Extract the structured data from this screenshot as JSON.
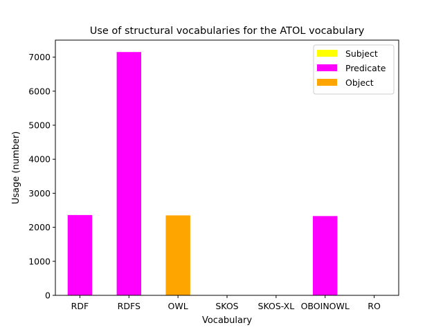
{
  "chart_data": {
    "type": "bar",
    "title": "Use of structural vocabularies for the ATOL vocabulary",
    "xlabel": "Vocabulary",
    "ylabel": "Usage (number)",
    "categories": [
      "RDF",
      "RDFS",
      "OWL",
      "SKOS",
      "SKOS-XL",
      "OBOINOWL",
      "RO"
    ],
    "series": [
      {
        "name": "Subject",
        "color": "#ffff00",
        "values": [
          0,
          0,
          0,
          0,
          0,
          0,
          0
        ]
      },
      {
        "name": "Predicate",
        "color": "#ff00ff",
        "values": [
          2360,
          7150,
          0,
          0,
          0,
          2330,
          0
        ]
      },
      {
        "name": "Object",
        "color": "#ffa500",
        "values": [
          0,
          0,
          2350,
          0,
          0,
          0,
          0
        ]
      }
    ],
    "ylim": [
      0,
      7500
    ],
    "yticks": [
      0,
      1000,
      2000,
      3000,
      4000,
      5000,
      6000,
      7000
    ],
    "grid": false,
    "legend_position": "top-right"
  }
}
